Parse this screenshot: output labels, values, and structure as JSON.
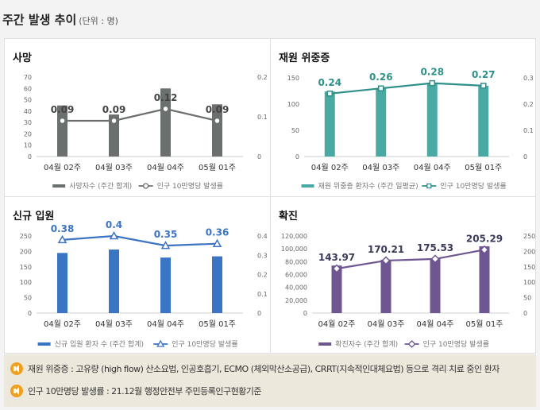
{
  "header": {
    "title": "주간 발생 추이",
    "unit": "(단위 : 명)"
  },
  "colors": {
    "deaths_bar": "#6b6f6e",
    "deaths_line": "#6b6f6e",
    "severe_bar": "#4aa9a3",
    "severe_line": "#2f8f8a",
    "admit_bar": "#3c74c4",
    "admit_line": "#3c74c4",
    "cases_bar": "#6e5690",
    "cases_line": "#6e5690",
    "note_icon": "#f0a020"
  },
  "chart_data": [
    {
      "id": "deaths",
      "type": "bar",
      "title": "사망",
      "categories": [
        "04월 02주",
        "04월 03주",
        "04월 04주",
        "05월 01주"
      ],
      "series": [
        {
          "name": "사망자수 (주간 합계)",
          "type": "bar",
          "axis": "left",
          "values": [
            45,
            37,
            60,
            46
          ]
        },
        {
          "name": "인구 10만명당 발생률",
          "type": "line",
          "axis": "right",
          "values": [
            0.09,
            0.09,
            0.12,
            0.09
          ],
          "labels": [
            "0.09",
            "0.09",
            "0.12",
            "0.09"
          ]
        }
      ],
      "y_left": {
        "min": 0,
        "max": 70,
        "ticks": [
          "0",
          "10",
          "20",
          "30",
          "40",
          "50",
          "60",
          "70"
        ]
      },
      "y_right": {
        "min": 0,
        "max": 0.2,
        "ticks": [
          "0",
          "0.1",
          "0.2"
        ]
      },
      "legend_placement": "bottom"
    },
    {
      "id": "severe",
      "type": "bar",
      "title": "재원 위중증",
      "categories": [
        "04월 02주",
        "04월 03주",
        "04월 04주",
        "05월 01주"
      ],
      "series": [
        {
          "name": "재원 위중증 환자수 (주간 일평균)",
          "type": "bar",
          "axis": "left",
          "values": [
            124,
            131,
            140,
            135
          ]
        },
        {
          "name": "인구 10만명당 발생률",
          "type": "line",
          "axis": "right",
          "values": [
            0.24,
            0.26,
            0.28,
            0.27
          ],
          "labels": [
            "0.24",
            "0.26",
            "0.28",
            "0.27"
          ]
        }
      ],
      "y_left": {
        "min": 0,
        "max": 150,
        "ticks": [
          "0",
          "50",
          "100",
          "150"
        ]
      },
      "y_right": {
        "min": 0,
        "max": 0.3,
        "ticks": [
          "0",
          "0.1",
          "0.2",
          "0.3"
        ]
      },
      "legend_placement": "bottom"
    },
    {
      "id": "admit",
      "type": "bar",
      "title": "신규 입원",
      "categories": [
        "04월 02주",
        "04월 03주",
        "04월 04주",
        "05월 01주"
      ],
      "series": [
        {
          "name": "신규 입원 환자 수 (주간 합계)",
          "type": "bar",
          "axis": "left",
          "values": [
            195,
            206,
            180,
            184
          ]
        },
        {
          "name": "인구 10만명당 발생률",
          "type": "line",
          "axis": "right",
          "values": [
            0.38,
            0.4,
            0.35,
            0.36
          ],
          "labels": [
            "0.38",
            "0.4",
            "0.35",
            "0.36"
          ]
        }
      ],
      "y_left": {
        "min": 0,
        "max": 250,
        "ticks": [
          "0",
          "50",
          "100",
          "150",
          "200",
          "250"
        ]
      },
      "y_right": {
        "min": 0,
        "max": 0.4,
        "ticks": [
          "0",
          "0.1",
          "0.2",
          "0.3",
          "0.4"
        ]
      },
      "legend_placement": "bottom"
    },
    {
      "id": "cases",
      "type": "bar",
      "title": "확진",
      "categories": [
        "04월 02주",
        "04월 03주",
        "04월 04주",
        "05월 01주"
      ],
      "series": [
        {
          "name": "확진자수 (주간 합계)",
          "type": "bar",
          "axis": "left",
          "values": [
            74000,
            83000,
            85000,
            104000
          ]
        },
        {
          "name": "인구 10만명당 발생률",
          "type": "line",
          "axis": "right",
          "values": [
            143.97,
            170.21,
            175.53,
            205.29
          ],
          "labels": [
            "143.97",
            "170.21",
            "175.53",
            "205.29"
          ]
        }
      ],
      "y_left": {
        "min": 0,
        "max": 120000,
        "ticks": [
          "0",
          "20,000",
          "40,000",
          "60,000",
          "80,000",
          "100,000",
          "120,000"
        ]
      },
      "y_right": {
        "min": 0,
        "max": 250,
        "ticks": [
          "0",
          "50",
          "100",
          "150",
          "200",
          "250"
        ]
      },
      "legend_placement": "bottom"
    }
  ],
  "notes": [
    {
      "text": "재원 위중증 : 고유량 (high flow) 산소요법, 인공호흡기, ECMO (체외막산소공급), CRRT(지속적인대체요법) 등으로 격리 치료 중인 환자"
    },
    {
      "text": "인구 10만명당 발생률 : 21.12월 행정안전부 주민등록인구현황기준"
    }
  ]
}
